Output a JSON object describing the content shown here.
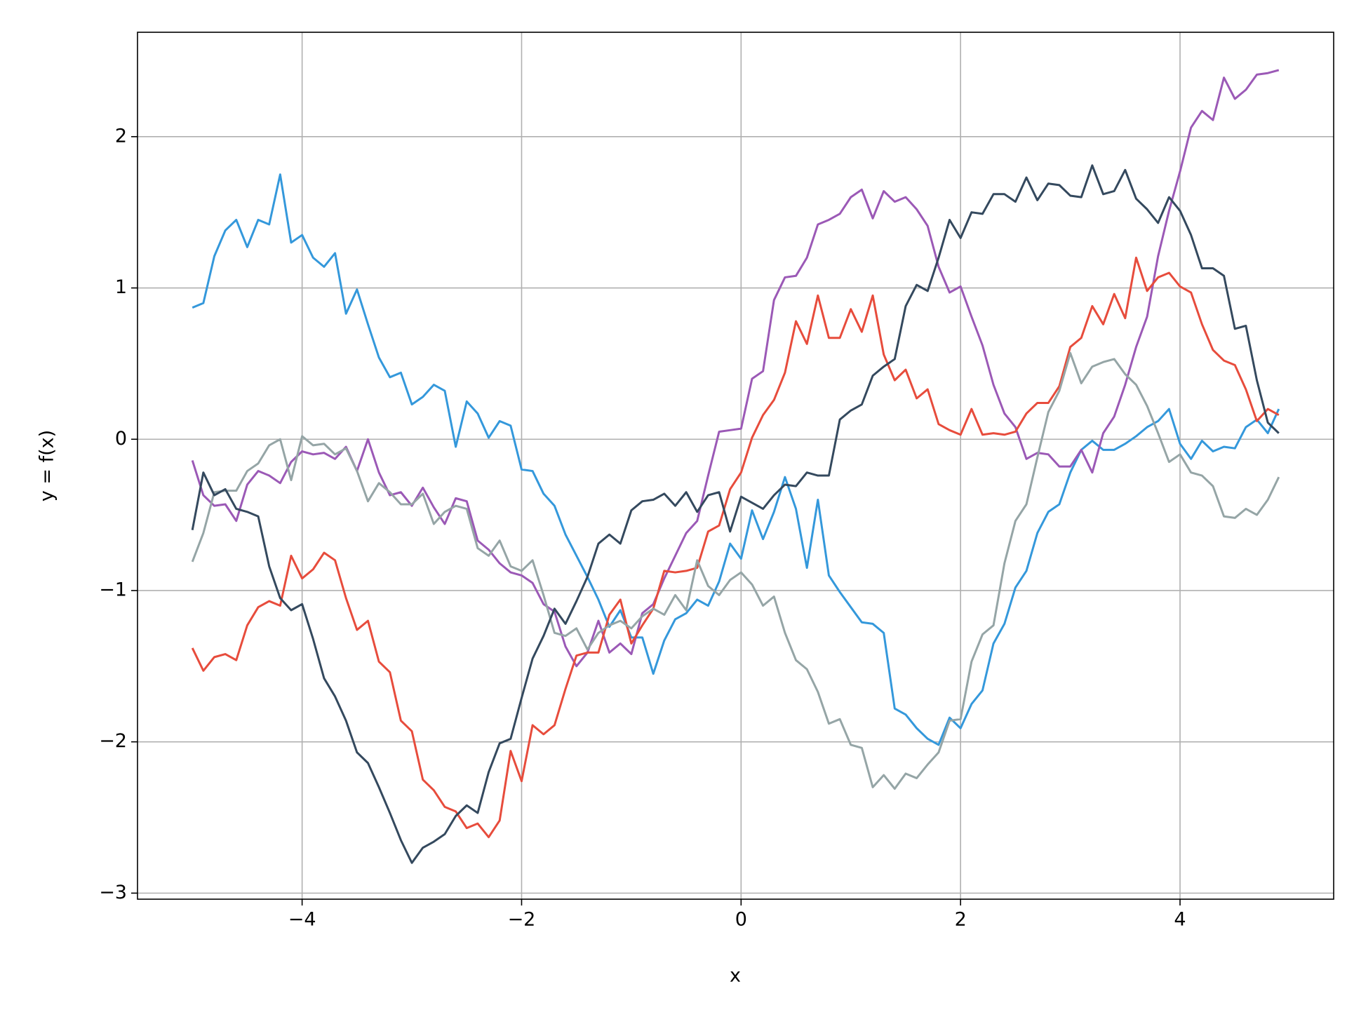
{
  "chart_data": {
    "type": "line",
    "x_label": "x",
    "y_label": "y = f(x)",
    "grid": true,
    "xlim": [
      -5.5,
      5.4
    ],
    "ylim": [
      -3.04,
      2.69
    ],
    "xticks": [
      {
        "value": -4,
        "label": "−4"
      },
      {
        "value": -2,
        "label": "−2"
      },
      0,
      2,
      4
    ],
    "yticks": [
      {
        "value": -3,
        "label": "−3"
      },
      {
        "value": -2,
        "label": "−2"
      },
      {
        "value": -1,
        "label": "−1"
      },
      0,
      1,
      2
    ],
    "x": [
      -5,
      -4.9,
      -4.8,
      -4.7,
      -4.6,
      -4.5,
      -4.4,
      -4.3,
      -4.2,
      -4.1,
      -4,
      -3.9,
      -3.8,
      -3.7,
      -3.6,
      -3.5,
      -3.4,
      -3.3,
      -3.2,
      -3.1,
      -3,
      -2.9,
      -2.8,
      -2.7,
      -2.6,
      -2.5,
      -2.4,
      -2.3,
      -2.2,
      -2.1,
      -2,
      -1.9,
      -1.8,
      -1.7,
      -1.6,
      -1.5,
      -1.4,
      -1.3,
      -1.2,
      -1.1,
      -1,
      -0.9,
      -0.8,
      -0.7,
      -0.6,
      -0.5,
      -0.4,
      -0.3,
      -0.2,
      -0.1,
      0,
      0.1,
      0.2,
      0.3,
      0.4,
      0.5,
      0.6,
      0.7,
      0.8,
      0.9,
      1,
      1.1,
      1.2,
      1.3,
      1.4,
      1.5,
      1.6,
      1.7,
      1.8,
      1.9,
      2,
      2.1,
      2.2,
      2.3,
      2.4,
      2.5,
      2.6,
      2.7,
      2.8,
      2.9,
      3,
      3.1,
      3.2,
      3.3,
      3.4,
      3.5,
      3.6,
      3.7,
      3.8,
      3.9,
      4,
      4.1,
      4.2,
      4.3,
      4.4,
      4.5,
      4.6,
      4.7,
      4.8,
      4.9
    ],
    "series": [
      {
        "color": "#3498db",
        "values": [
          0.87,
          0.9,
          1.21,
          1.38,
          1.45,
          1.27,
          1.45,
          1.42,
          1.75,
          1.3,
          1.35,
          1.2,
          1.14,
          1.23,
          0.83,
          0.99,
          0.76,
          0.54,
          0.41,
          0.44,
          0.23,
          0.28,
          0.36,
          0.32,
          -0.05,
          0.25,
          0.17,
          0.01,
          0.12,
          0.09,
          -0.2,
          -0.21,
          -0.36,
          -0.44,
          -0.63,
          -0.77,
          -0.91,
          -1.06,
          -1.24,
          -1.13,
          -1.31,
          -1.31,
          -1.55,
          -1.33,
          -1.19,
          -1.15,
          -1.06,
          -1.1,
          -0.94,
          -0.69,
          -0.79,
          -0.47,
          -0.66,
          -0.48,
          -0.25,
          -0.46,
          -0.85,
          -0.4,
          -0.9,
          -1.01,
          -1.11,
          -1.21,
          -1.22,
          -1.28,
          -1.78,
          -1.82,
          -1.91,
          -1.98,
          -2.02,
          -1.84,
          -1.91,
          -1.75,
          -1.66,
          -1.35,
          -1.22,
          -0.98,
          -0.87,
          -0.62,
          -0.48,
          -0.43,
          -0.22,
          -0.07,
          -0.01,
          -0.07,
          -0.07,
          -0.03,
          0.02,
          0.08,
          0.12,
          0.2,
          -0.03,
          -0.13,
          -0.01,
          -0.08,
          -0.05,
          -0.06,
          0.08,
          0.13,
          0.04,
          0.2
        ]
      },
      {
        "color": "#9b59b6",
        "values": [
          -0.14,
          -0.37,
          -0.44,
          -0.43,
          -0.54,
          -0.3,
          -0.21,
          -0.24,
          -0.29,
          -0.15,
          -0.08,
          -0.1,
          -0.09,
          -0.13,
          -0.05,
          -0.21,
          0.0,
          -0.22,
          -0.37,
          -0.35,
          -0.44,
          -0.32,
          -0.45,
          -0.56,
          -0.39,
          -0.41,
          -0.67,
          -0.73,
          -0.82,
          -0.88,
          -0.9,
          -0.95,
          -1.09,
          -1.14,
          -1.37,
          -1.5,
          -1.41,
          -1.2,
          -1.41,
          -1.35,
          -1.42,
          -1.15,
          -1.09,
          -0.92,
          -0.77,
          -0.62,
          -0.54,
          -0.24,
          0.05,
          0.06,
          0.07,
          0.4,
          0.45,
          0.92,
          1.07,
          1.08,
          1.2,
          1.42,
          1.45,
          1.49,
          1.6,
          1.65,
          1.46,
          1.64,
          1.57,
          1.6,
          1.52,
          1.41,
          1.14,
          0.97,
          1.01,
          0.81,
          0.62,
          0.36,
          0.17,
          0.08,
          -0.13,
          -0.09,
          -0.1,
          -0.18,
          -0.18,
          -0.07,
          -0.22,
          0.04,
          0.15,
          0.36,
          0.61,
          0.81,
          1.21,
          1.51,
          1.77,
          2.06,
          2.17,
          2.11,
          2.39,
          2.25,
          2.31,
          2.41,
          2.42,
          2.44
        ]
      },
      {
        "color": "#e74c3c",
        "values": [
          -1.38,
          -1.53,
          -1.44,
          -1.42,
          -1.46,
          -1.23,
          -1.11,
          -1.07,
          -1.1,
          -0.77,
          -0.92,
          -0.86,
          -0.75,
          -0.8,
          -1.05,
          -1.26,
          -1.2,
          -1.47,
          -1.54,
          -1.86,
          -1.93,
          -2.25,
          -2.32,
          -2.43,
          -2.46,
          -2.57,
          -2.54,
          -2.63,
          -2.52,
          -2.06,
          -2.26,
          -1.89,
          -1.95,
          -1.89,
          -1.65,
          -1.43,
          -1.41,
          -1.41,
          -1.16,
          -1.06,
          -1.35,
          -1.23,
          -1.12,
          -0.87,
          -0.88,
          -0.87,
          -0.85,
          -0.61,
          -0.57,
          -0.33,
          -0.22,
          0.01,
          0.16,
          0.26,
          0.44,
          0.78,
          0.63,
          0.95,
          0.67,
          0.67,
          0.86,
          0.71,
          0.95,
          0.56,
          0.39,
          0.46,
          0.27,
          0.33,
          0.1,
          0.06,
          0.03,
          0.2,
          0.03,
          0.04,
          0.03,
          0.05,
          0.17,
          0.24,
          0.24,
          0.35,
          0.61,
          0.67,
          0.88,
          0.76,
          0.96,
          0.8,
          1.2,
          0.98,
          1.07,
          1.1,
          1.01,
          0.97,
          0.76,
          0.59,
          0.52,
          0.49,
          0.33,
          0.12,
          0.2,
          0.16
        ]
      },
      {
        "color": "#95a5a6",
        "values": [
          -0.81,
          -0.62,
          -0.35,
          -0.34,
          -0.34,
          -0.21,
          -0.16,
          -0.04,
          0.0,
          -0.27,
          0.02,
          -0.04,
          -0.03,
          -0.1,
          -0.06,
          -0.21,
          -0.41,
          -0.29,
          -0.35,
          -0.43,
          -0.43,
          -0.36,
          -0.56,
          -0.48,
          -0.44,
          -0.46,
          -0.72,
          -0.77,
          -0.67,
          -0.84,
          -0.87,
          -0.8,
          -1.03,
          -1.28,
          -1.3,
          -1.25,
          -1.39,
          -1.28,
          -1.23,
          -1.2,
          -1.25,
          -1.17,
          -1.12,
          -1.16,
          -1.03,
          -1.13,
          -0.8,
          -0.97,
          -1.03,
          -0.93,
          -0.88,
          -0.96,
          -1.1,
          -1.04,
          -1.28,
          -1.46,
          -1.52,
          -1.67,
          -1.88,
          -1.85,
          -2.02,
          -2.04,
          -2.3,
          -2.22,
          -2.31,
          -2.21,
          -2.24,
          -2.15,
          -2.07,
          -1.86,
          -1.85,
          -1.47,
          -1.29,
          -1.23,
          -0.82,
          -0.54,
          -0.43,
          -0.12,
          0.18,
          0.32,
          0.57,
          0.37,
          0.48,
          0.51,
          0.53,
          0.43,
          0.36,
          0.22,
          0.04,
          -0.15,
          -0.1,
          -0.22,
          -0.24,
          -0.31,
          -0.51,
          -0.52,
          -0.46,
          -0.5,
          -0.4,
          -0.25
        ]
      },
      {
        "color": "#34495e",
        "values": [
          -0.6,
          -0.22,
          -0.37,
          -0.33,
          -0.46,
          -0.48,
          -0.51,
          -0.84,
          -1.05,
          -1.13,
          -1.09,
          -1.32,
          -1.58,
          -1.7,
          -1.86,
          -2.07,
          -2.14,
          -2.3,
          -2.47,
          -2.65,
          -2.8,
          -2.7,
          -2.66,
          -2.61,
          -2.49,
          -2.42,
          -2.47,
          -2.2,
          -2.01,
          -1.98,
          -1.71,
          -1.45,
          -1.3,
          -1.12,
          -1.22,
          -1.07,
          -0.91,
          -0.69,
          -0.63,
          -0.69,
          -0.47,
          -0.41,
          -0.4,
          -0.36,
          -0.44,
          -0.35,
          -0.48,
          -0.37,
          -0.35,
          -0.61,
          -0.38,
          -0.42,
          -0.46,
          -0.37,
          -0.3,
          -0.31,
          -0.22,
          -0.24,
          -0.24,
          0.13,
          0.19,
          0.23,
          0.42,
          0.48,
          0.53,
          0.88,
          1.02,
          0.98,
          1.2,
          1.45,
          1.33,
          1.5,
          1.49,
          1.62,
          1.62,
          1.57,
          1.73,
          1.58,
          1.69,
          1.68,
          1.61,
          1.6,
          1.81,
          1.62,
          1.64,
          1.78,
          1.59,
          1.52,
          1.43,
          1.6,
          1.51,
          1.35,
          1.13,
          1.13,
          1.08,
          0.73,
          0.75,
          0.39,
          0.11,
          0.04
        ]
      }
    ]
  }
}
